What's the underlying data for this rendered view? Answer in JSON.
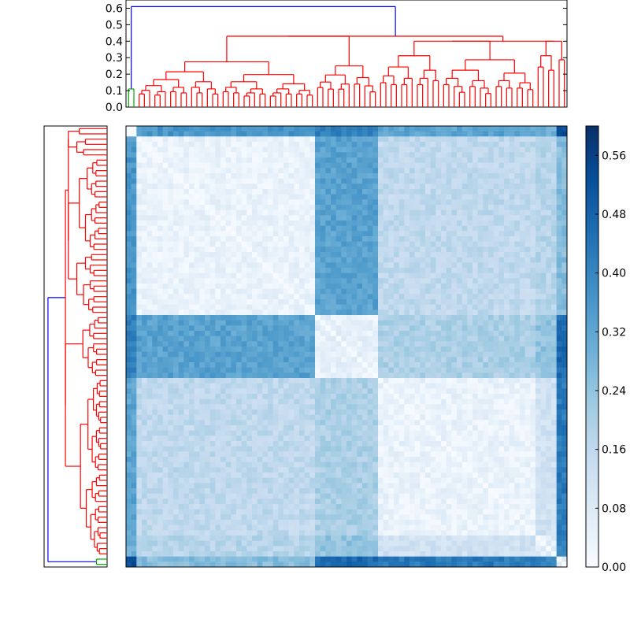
{
  "chart_data": [
    {
      "type": "dendrogram",
      "name": "top-dendrogram",
      "orientation": "top",
      "ylim": [
        0.0,
        0.65
      ],
      "ticks": [
        "0.0",
        "0.1",
        "0.2",
        "0.3",
        "0.4",
        "0.5",
        "0.6"
      ],
      "tick_values": [
        0.0,
        0.1,
        0.2,
        0.3,
        0.4,
        0.5,
        0.6
      ],
      "leaf_count": 84,
      "root_height": 0.61,
      "major_cluster_heights": [
        0.43,
        0.4,
        0.275,
        0.25
      ],
      "colors": {
        "root": "#0000ff",
        "cluster": "#ff0000",
        "small_cluster": "#00aa00"
      }
    },
    {
      "type": "dendrogram",
      "name": "left-dendrogram",
      "orientation": "left",
      "leaf_count": 84,
      "root_height": 0.61,
      "colors": {
        "root": "#0000ff",
        "cluster": "#ff0000",
        "small_cluster": "#00aa00"
      }
    },
    {
      "type": "heatmap",
      "name": "distance-matrix",
      "size": 84,
      "colormap": "Blues",
      "value_range": [
        0.0,
        0.6
      ],
      "block_boundaries": [
        2,
        36,
        48,
        78,
        82,
        84
      ],
      "block_values": [
        [
          0.03,
          0.36,
          0.42,
          0.33,
          0.3,
          0.52
        ],
        [
          0.36,
          0.04,
          0.33,
          0.16,
          0.18,
          0.26
        ],
        [
          0.42,
          0.33,
          0.05,
          0.2,
          0.24,
          0.47
        ],
        [
          0.33,
          0.16,
          0.2,
          0.04,
          0.12,
          0.43
        ],
        [
          0.3,
          0.18,
          0.24,
          0.12,
          0.06,
          0.4
        ],
        [
          0.52,
          0.26,
          0.47,
          0.43,
          0.4,
          0.05
        ]
      ],
      "note": "Values estimated from colour intensity of the distance matrix; zero diagonal."
    },
    {
      "type": "colorbar",
      "name": "colorbar",
      "range": [
        0.0,
        0.6
      ],
      "ticks": [
        "0.00",
        "0.08",
        "0.16",
        "0.24",
        "0.32",
        "0.40",
        "0.48",
        "0.56"
      ],
      "tick_values": [
        0.0,
        0.08,
        0.16,
        0.24,
        0.32,
        0.4,
        0.48,
        0.56
      ]
    }
  ]
}
